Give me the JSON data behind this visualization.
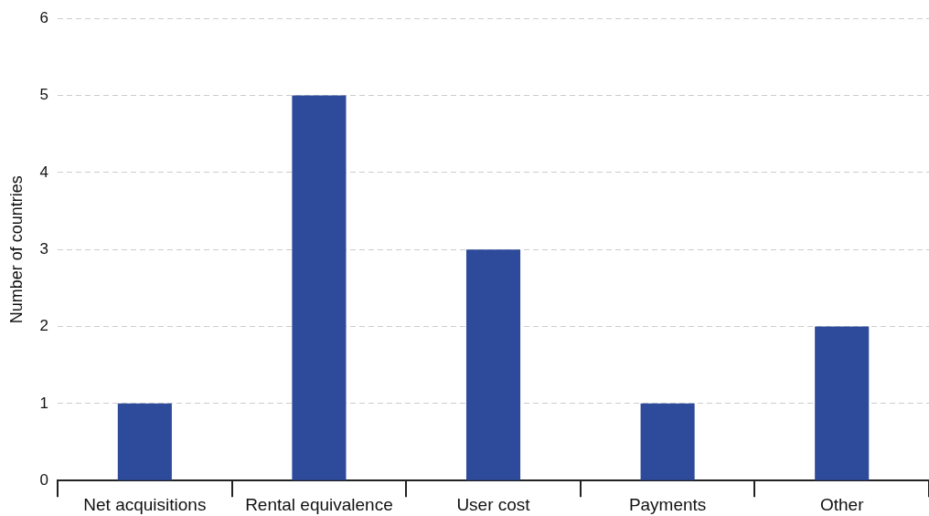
{
  "chart_data": {
    "type": "bar",
    "ylabel": "Number of countries",
    "categories": [
      "Net acquisitions",
      "Rental equivalence",
      "User cost",
      "Payments",
      "Other"
    ],
    "values": [
      1,
      5,
      3,
      1,
      2
    ],
    "color": "#2e4a9a",
    "ylim": [
      0,
      6
    ],
    "yticks": [
      0,
      1,
      2,
      3,
      4,
      5,
      6
    ],
    "grid": "y",
    "legend": false
  }
}
